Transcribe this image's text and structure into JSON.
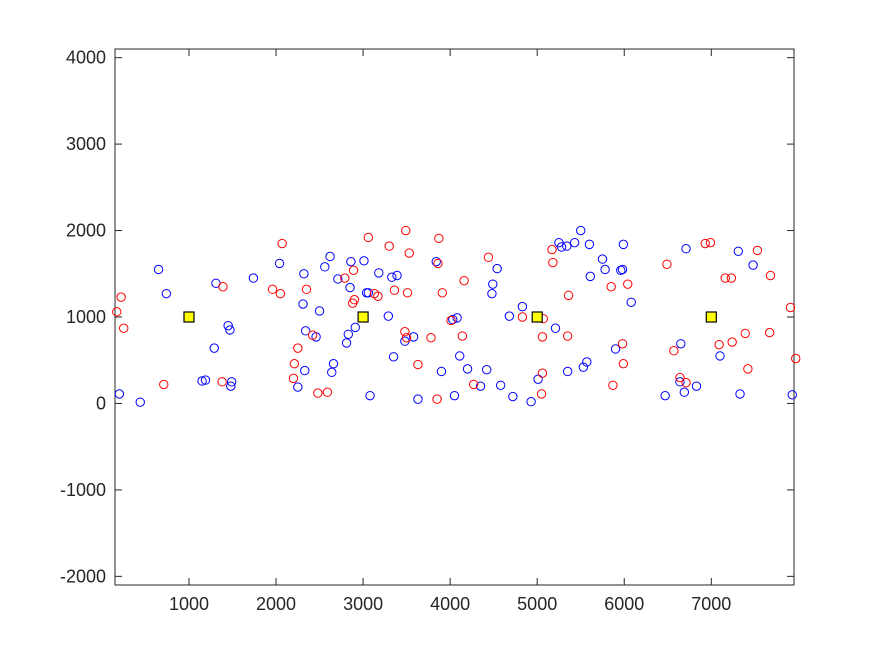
{
  "chart_data": {
    "type": "scatter",
    "title": "",
    "xlabel": "",
    "ylabel": "",
    "xlim": [
      150,
      7950
    ],
    "ylim": [
      -2100,
      4100
    ],
    "xticks": [
      1000,
      2000,
      3000,
      4000,
      5000,
      6000,
      7000
    ],
    "yticks": [
      -2000,
      -1000,
      0,
      1000,
      2000,
      3000,
      4000
    ],
    "grid": false,
    "legend": "none",
    "series": [
      {
        "marker": "circle-open",
        "color": "#0000ff",
        "points": [
          [
            200,
            110
          ],
          [
            440,
            15
          ],
          [
            650,
            1550
          ],
          [
            740,
            1270
          ],
          [
            1150,
            260
          ],
          [
            1190,
            270
          ],
          [
            1290,
            640
          ],
          [
            1310,
            1390
          ],
          [
            1450,
            900
          ],
          [
            1470,
            850
          ],
          [
            1480,
            200
          ],
          [
            1490,
            250
          ],
          [
            1740,
            1450
          ],
          [
            2040,
            1620
          ],
          [
            2250,
            190
          ],
          [
            2310,
            1150
          ],
          [
            2320,
            1500
          ],
          [
            2330,
            380
          ],
          [
            2340,
            840
          ],
          [
            2460,
            770
          ],
          [
            2500,
            1070
          ],
          [
            2560,
            1580
          ],
          [
            2620,
            1700
          ],
          [
            2640,
            360
          ],
          [
            2660,
            460
          ],
          [
            2710,
            1440
          ],
          [
            2810,
            700
          ],
          [
            2830,
            800
          ],
          [
            2850,
            1340
          ],
          [
            2860,
            1640
          ],
          [
            2910,
            880
          ],
          [
            3010,
            1650
          ],
          [
            3040,
            1280
          ],
          [
            3060,
            1280
          ],
          [
            3080,
            90
          ],
          [
            3180,
            1510
          ],
          [
            3290,
            1010
          ],
          [
            3330,
            1460
          ],
          [
            3350,
            540
          ],
          [
            3390,
            1480
          ],
          [
            3480,
            720
          ],
          [
            3580,
            770
          ],
          [
            3630,
            50
          ],
          [
            3840,
            1640
          ],
          [
            3900,
            370
          ],
          [
            4030,
            970
          ],
          [
            4050,
            90
          ],
          [
            4080,
            990
          ],
          [
            4110,
            550
          ],
          [
            4200,
            400
          ],
          [
            4350,
            200
          ],
          [
            4420,
            390
          ],
          [
            4480,
            1270
          ],
          [
            4490,
            1380
          ],
          [
            4540,
            1560
          ],
          [
            4580,
            210
          ],
          [
            4680,
            1010
          ],
          [
            4720,
            80
          ],
          [
            4830,
            1120
          ],
          [
            4930,
            20
          ],
          [
            5010,
            280
          ],
          [
            5210,
            870
          ],
          [
            5250,
            1860
          ],
          [
            5280,
            1810
          ],
          [
            5340,
            1820
          ],
          [
            5350,
            370
          ],
          [
            5430,
            1860
          ],
          [
            5500,
            2000
          ],
          [
            5530,
            420
          ],
          [
            5570,
            480
          ],
          [
            5600,
            1840
          ],
          [
            5610,
            1470
          ],
          [
            5750,
            1670
          ],
          [
            5780,
            1550
          ],
          [
            5900,
            630
          ],
          [
            5960,
            1540
          ],
          [
            5980,
            1550
          ],
          [
            5990,
            1840
          ],
          [
            6080,
            1170
          ],
          [
            6470,
            90
          ],
          [
            6640,
            250
          ],
          [
            6650,
            690
          ],
          [
            6690,
            130
          ],
          [
            6710,
            1790
          ],
          [
            6830,
            200
          ],
          [
            7100,
            550
          ],
          [
            7310,
            1760
          ],
          [
            7330,
            110
          ],
          [
            7480,
            1600
          ],
          [
            7930,
            100
          ]
        ]
      },
      {
        "marker": "circle-open",
        "color": "#ff0000",
        "points": [
          [
            170,
            1060
          ],
          [
            220,
            1230
          ],
          [
            250,
            870
          ],
          [
            710,
            220
          ],
          [
            1380,
            250
          ],
          [
            1390,
            1350
          ],
          [
            1960,
            1320
          ],
          [
            2050,
            1270
          ],
          [
            2070,
            1850
          ],
          [
            2200,
            290
          ],
          [
            2210,
            460
          ],
          [
            2250,
            640
          ],
          [
            2350,
            1320
          ],
          [
            2420,
            790
          ],
          [
            2480,
            120
          ],
          [
            2590,
            130
          ],
          [
            2790,
            1450
          ],
          [
            2880,
            1160
          ],
          [
            2890,
            1540
          ],
          [
            2900,
            1200
          ],
          [
            3060,
            1920
          ],
          [
            3130,
            1270
          ],
          [
            3170,
            1240
          ],
          [
            3300,
            1820
          ],
          [
            3360,
            1310
          ],
          [
            3480,
            830
          ],
          [
            3490,
            2000
          ],
          [
            3500,
            760
          ],
          [
            3510,
            1280
          ],
          [
            3530,
            1740
          ],
          [
            3630,
            450
          ],
          [
            3780,
            760
          ],
          [
            3850,
            50
          ],
          [
            3860,
            1620
          ],
          [
            3870,
            1910
          ],
          [
            3910,
            1280
          ],
          [
            4010,
            960
          ],
          [
            4140,
            780
          ],
          [
            4160,
            1420
          ],
          [
            4270,
            220
          ],
          [
            4440,
            1690
          ],
          [
            4830,
            1000
          ],
          [
            5050,
            110
          ],
          [
            5060,
            350
          ],
          [
            5060,
            770
          ],
          [
            5070,
            980
          ],
          [
            5170,
            1780
          ],
          [
            5180,
            1630
          ],
          [
            5350,
            780
          ],
          [
            5360,
            1250
          ],
          [
            5850,
            1350
          ],
          [
            5870,
            210
          ],
          [
            5980,
            690
          ],
          [
            5990,
            460
          ],
          [
            6040,
            1380
          ],
          [
            6490,
            1610
          ],
          [
            6570,
            610
          ],
          [
            6640,
            300
          ],
          [
            6710,
            240
          ],
          [
            6930,
            1850
          ],
          [
            6990,
            1860
          ],
          [
            7090,
            680
          ],
          [
            7160,
            1450
          ],
          [
            7230,
            1450
          ],
          [
            7240,
            710
          ],
          [
            7390,
            810
          ],
          [
            7420,
            400
          ],
          [
            7530,
            1770
          ],
          [
            7670,
            820
          ],
          [
            7680,
            1480
          ],
          [
            7910,
            1110
          ],
          [
            7970,
            520
          ]
        ]
      },
      {
        "marker": "square-filled",
        "color": "#ffff00",
        "edgecolor": "#000000",
        "points": [
          [
            1000,
            1000
          ],
          [
            3000,
            1000
          ],
          [
            5000,
            1000
          ],
          [
            7000,
            1000
          ]
        ]
      }
    ]
  }
}
